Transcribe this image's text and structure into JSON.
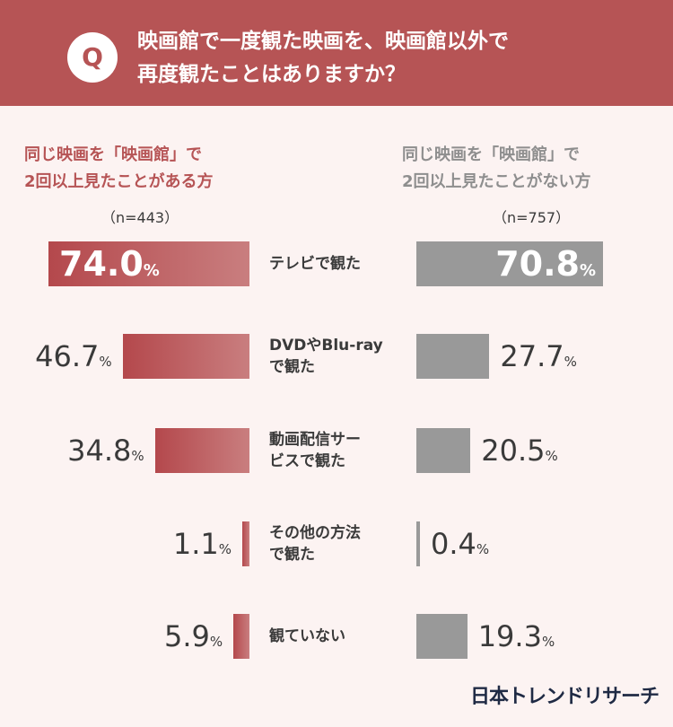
{
  "question": {
    "badge": "Q",
    "line1": "映画館で一度観た映画を、映画館以外で",
    "line2": "再度観たことはありますか？"
  },
  "groups": {
    "left": {
      "line1": "同じ映画を「映画館」で",
      "line2": "2回以上見たことがある方",
      "n": "（n=443）"
    },
    "right": {
      "line1": "同じ映画を「映画館」で",
      "line2": "2回以上見たことがない方",
      "n": "（n=757）"
    }
  },
  "colors": {
    "header": "#b65455",
    "left_bar": "#b4484c",
    "right_bar": "#999999",
    "background": "#fcf3f2"
  },
  "chart_data": {
    "type": "bar",
    "title": "映画館で一度観た映画を、映画館以外で再度観たことはありますか？",
    "unit": "%",
    "categories": [
      [
        "テレビで観た"
      ],
      [
        "DVDやBlu-ray",
        "で観た"
      ],
      [
        "動画配信サー",
        "ビスで観た"
      ],
      [
        "その他の方法",
        "で観た"
      ],
      [
        "観ていない"
      ]
    ],
    "series": [
      {
        "name": "同じ映画を「映画館」で2回以上見たことがある方（n=443）",
        "values": [
          74.0,
          46.7,
          34.8,
          1.1,
          5.9
        ]
      },
      {
        "name": "同じ映画を「映画館」で2回以上見たことがない方（n=757）",
        "values": [
          70.8,
          27.7,
          20.5,
          0.4,
          19.3
        ]
      }
    ],
    "xlim": [
      0,
      100
    ]
  },
  "brand": "日本トレンドリサーチ"
}
